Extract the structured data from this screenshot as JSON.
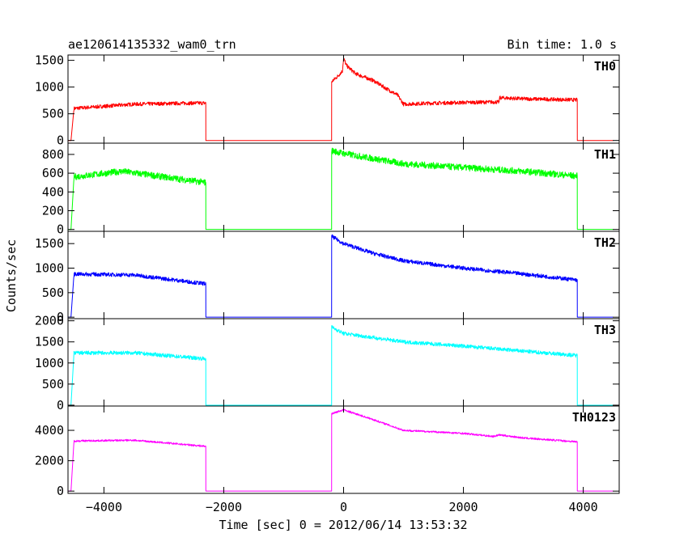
{
  "chart_data": {
    "type": "line",
    "title": "ae120614135332_wam0_trn",
    "bin_time": "Bin time: 1.0 s",
    "xlabel": "Time [sec] 0 = 2012/06/14 13:53:32",
    "ylabel": "Counts/sec",
    "xlim": [
      -4600,
      4600
    ],
    "x_ticks": [
      -4000,
      -2000,
      0,
      2000,
      4000
    ],
    "x_tick_labels": [
      "−4000",
      "−2000",
      "0",
      "2000",
      "4000"
    ],
    "grid": false,
    "panels": [
      {
        "name": "TH0",
        "color": "#ff0000",
        "ylim": [
          -50,
          1600
        ],
        "y_ticks": [
          0,
          500,
          1000,
          1500
        ],
        "y_tick_labels": [
          "0",
          "500",
          "1000",
          "1500"
        ],
        "noise": 35,
        "x": [
          -4600,
          -4550,
          -4500,
          -3500,
          -2500,
          -2300,
          -2299,
          -200,
          -199,
          -100,
          -20,
          0,
          50,
          200,
          500,
          700,
          900,
          1000,
          1500,
          2500,
          2600,
          2601,
          3000,
          3880,
          3900,
          3901,
          4500
        ],
        "y": [
          0,
          0,
          600,
          680,
          700,
          700,
          0,
          0,
          1100,
          1200,
          1300,
          1540,
          1400,
          1250,
          1120,
          980,
          850,
          680,
          700,
          720,
          720,
          800,
          780,
          760,
          760,
          0,
          0
        ]
      },
      {
        "name": "TH1",
        "color": "#00ff00",
        "ylim": [
          -20,
          920
        ],
        "y_ticks": [
          0,
          200,
          400,
          600,
          800
        ],
        "y_tick_labels": [
          "0",
          "200",
          "400",
          "600",
          "800"
        ],
        "noise": 35,
        "x": [
          -4600,
          -4550,
          -4500,
          -3700,
          -3000,
          -2300,
          -2299,
          -200,
          -199,
          0,
          1000,
          2000,
          3000,
          3880,
          3900,
          3901,
          4500
        ],
        "y": [
          0,
          0,
          560,
          620,
          560,
          500,
          0,
          0,
          840,
          810,
          700,
          660,
          620,
          570,
          570,
          0,
          0
        ]
      },
      {
        "name": "TH2",
        "color": "#0000ff",
        "ylim": [
          -30,
          1750
        ],
        "y_ticks": [
          0,
          500,
          1000,
          1500
        ],
        "y_tick_labels": [
          "0",
          "500",
          "1000",
          "1500"
        ],
        "noise": 40,
        "x": [
          -4600,
          -4550,
          -4500,
          -3500,
          -2300,
          -2299,
          -200,
          -199,
          0,
          500,
          1000,
          2000,
          3000,
          3880,
          3900,
          3901,
          4500
        ],
        "y": [
          0,
          0,
          880,
          860,
          680,
          0,
          0,
          1650,
          1500,
          1300,
          1150,
          1000,
          880,
          760,
          760,
          0,
          0
        ]
      },
      {
        "name": "TH3",
        "color": "#00ffff",
        "ylim": [
          -20,
          2050
        ],
        "y_ticks": [
          0,
          500,
          1000,
          1500,
          2000
        ],
        "y_tick_labels": [
          "0",
          "500",
          "1000",
          "1500",
          "2000"
        ],
        "noise": 45,
        "x": [
          -4600,
          -4550,
          -4500,
          -3500,
          -2300,
          -2299,
          -200,
          -199,
          0,
          1000,
          2000,
          3000,
          3880,
          3900,
          3901,
          4500
        ],
        "y": [
          0,
          0,
          1240,
          1240,
          1100,
          0,
          0,
          1850,
          1700,
          1500,
          1400,
          1280,
          1180,
          1180,
          0,
          0
        ]
      },
      {
        "name": "TH0123",
        "color": "#ff00ff",
        "ylim": [
          -150,
          5600
        ],
        "y_ticks": [
          0,
          2000,
          4000
        ],
        "y_tick_labels": [
          "0",
          "2000",
          "4000"
        ],
        "noise": 60,
        "x": [
          -4600,
          -4550,
          -4500,
          -3500,
          -2300,
          -2299,
          -200,
          -199,
          0,
          500,
          1000,
          2000,
          2500,
          2600,
          3000,
          3880,
          3900,
          3901,
          4500
        ],
        "y": [
          0,
          0,
          3300,
          3350,
          2950,
          0,
          0,
          5100,
          5350,
          4700,
          4000,
          3800,
          3600,
          3700,
          3500,
          3250,
          3250,
          0,
          0
        ]
      }
    ]
  }
}
